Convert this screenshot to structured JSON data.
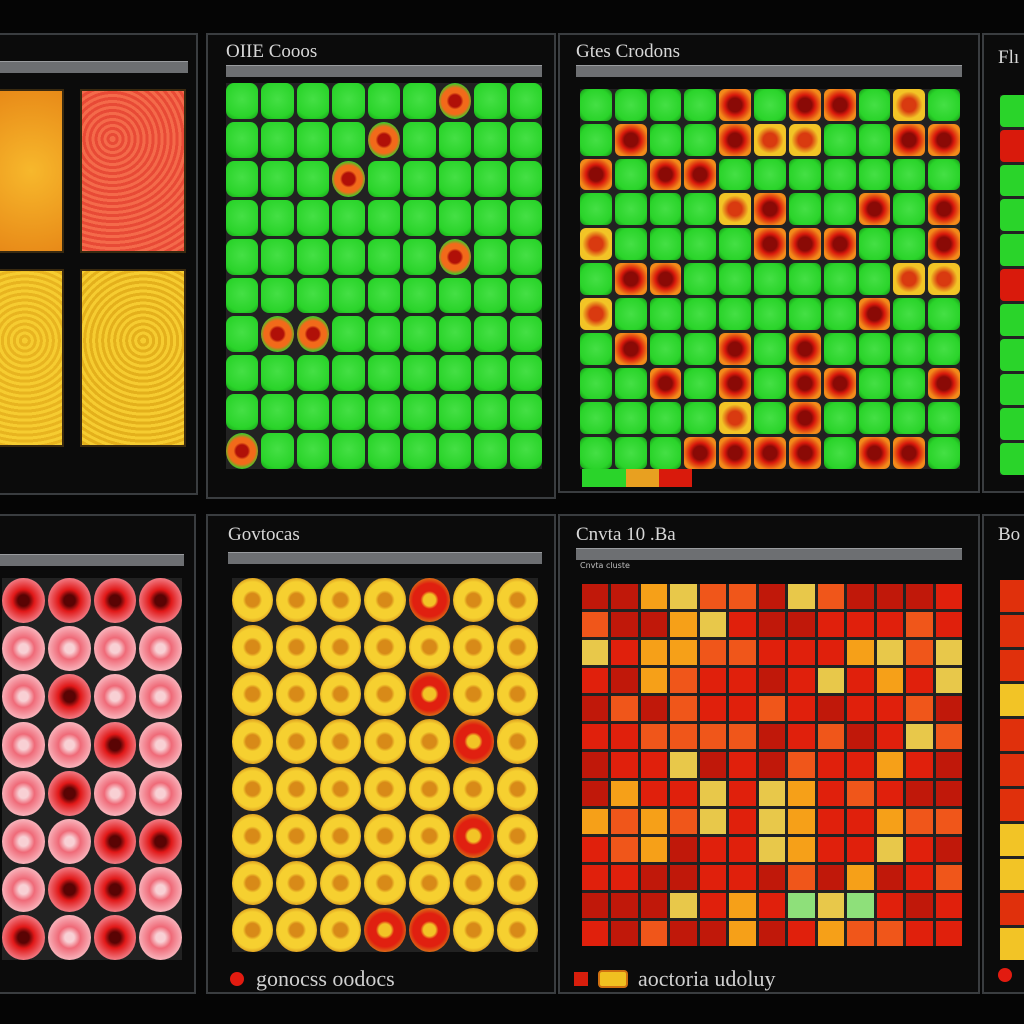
{
  "panels": {
    "p1": {
      "title": ""
    },
    "p2": {
      "title": "OIIE Cooos",
      "subtitle": ""
    },
    "p3": {
      "title": "Gtes Crodons",
      "subtitle": ""
    },
    "p4": {
      "title": "Flı"
    },
    "p5": {
      "title": ""
    },
    "p6": {
      "title": "Govtocas"
    },
    "p7": {
      "title": "Cnvta 10 .Ba",
      "subtitle": "Cnvta cluste"
    },
    "p8": {
      "title": "Bo"
    }
  },
  "legend": {
    "left_label": "gonocss oodocs",
    "right_label": "aoctoria udoluy"
  },
  "colors": {
    "background": "#050505",
    "green": "#2ad42a",
    "red": "#d91a0c",
    "orange": "#ee6a12",
    "yellow": "#f2c426",
    "pink": "#f5a0a8"
  },
  "icons": [
    "legend-red-dot-icon",
    "legend-red-square-icon",
    "legend-yellow-rect-icon"
  ]
}
